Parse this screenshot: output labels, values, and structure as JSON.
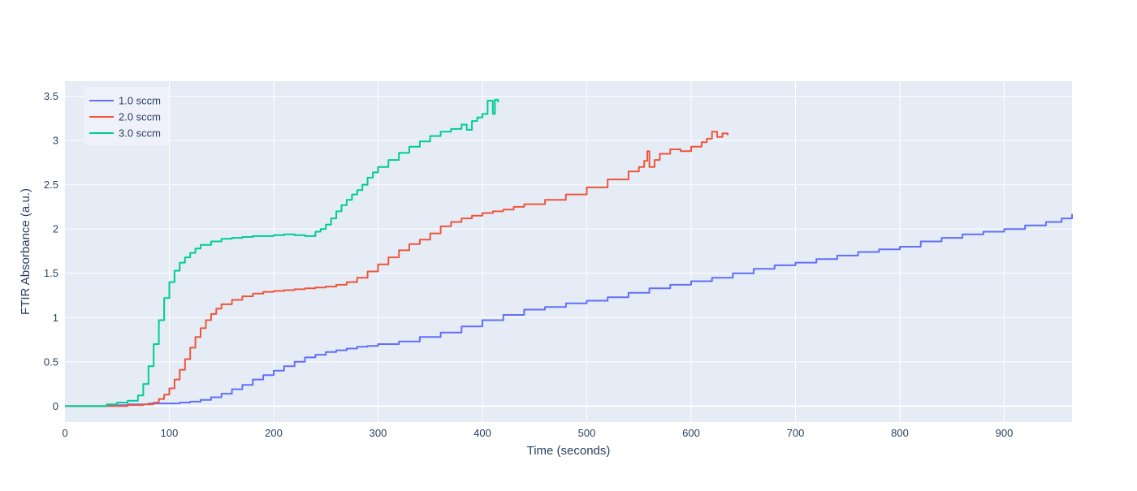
{
  "chart_data": {
    "type": "line",
    "title": "",
    "xlabel": "Time (seconds)",
    "ylabel": "FTIR Absorbance (a.u.)",
    "xlim": [
      0,
      965
    ],
    "ylim": [
      -0.18,
      3.67
    ],
    "x_ticks": [
      0,
      100,
      200,
      300,
      400,
      500,
      600,
      700,
      800,
      900
    ],
    "y_ticks": [
      0,
      0.5,
      1,
      1.5,
      2,
      2.5,
      3,
      3.5
    ],
    "x_tick_labels": [
      "0",
      "100",
      "200",
      "300",
      "400",
      "500",
      "600",
      "700",
      "800",
      "900"
    ],
    "y_tick_labels": [
      "0",
      "0.5",
      "1",
      "1.5",
      "2",
      "2.5",
      "3",
      "3.5"
    ],
    "grid": true,
    "legend_position": "top-left",
    "plot_background": "#e5ecf6",
    "series": [
      {
        "name": "1.0 sccm",
        "color": "#636efa",
        "x": [
          0,
          20,
          40,
          60,
          80,
          100,
          110,
          120,
          130,
          140,
          150,
          160,
          170,
          180,
          190,
          200,
          210,
          220,
          230,
          240,
          250,
          260,
          270,
          280,
          290,
          300,
          320,
          340,
          360,
          380,
          400,
          420,
          440,
          460,
          480,
          500,
          520,
          540,
          560,
          580,
          600,
          620,
          640,
          660,
          680,
          700,
          720,
          740,
          760,
          780,
          800,
          820,
          840,
          860,
          880,
          900,
          920,
          940,
          955,
          965
        ],
        "y": [
          0.0,
          0.0,
          0.01,
          0.02,
          0.03,
          0.03,
          0.04,
          0.05,
          0.07,
          0.1,
          0.14,
          0.19,
          0.24,
          0.3,
          0.35,
          0.4,
          0.45,
          0.5,
          0.55,
          0.58,
          0.61,
          0.63,
          0.65,
          0.67,
          0.68,
          0.7,
          0.73,
          0.78,
          0.83,
          0.9,
          0.97,
          1.03,
          1.09,
          1.12,
          1.16,
          1.19,
          1.23,
          1.28,
          1.33,
          1.37,
          1.41,
          1.45,
          1.5,
          1.55,
          1.59,
          1.62,
          1.66,
          1.7,
          1.74,
          1.77,
          1.8,
          1.86,
          1.9,
          1.94,
          1.97,
          2.0,
          2.04,
          2.08,
          2.12,
          2.17
        ]
      },
      {
        "name": "2.0 sccm",
        "color": "#ef553b",
        "x": [
          0,
          20,
          40,
          60,
          75,
          85,
          90,
          95,
          100,
          105,
          110,
          115,
          120,
          125,
          130,
          135,
          140,
          145,
          150,
          160,
          170,
          180,
          190,
          200,
          210,
          220,
          230,
          240,
          250,
          260,
          270,
          280,
          290,
          300,
          310,
          320,
          330,
          340,
          350,
          360,
          370,
          380,
          390,
          400,
          410,
          420,
          430,
          440,
          460,
          480,
          500,
          520,
          540,
          550,
          555,
          558,
          560,
          565,
          570,
          580,
          590,
          600,
          610,
          615,
          620,
          625,
          630,
          635
        ],
        "y": [
          0.0,
          0.0,
          0.0,
          0.01,
          0.02,
          0.04,
          0.08,
          0.13,
          0.2,
          0.3,
          0.41,
          0.53,
          0.66,
          0.78,
          0.88,
          0.97,
          1.04,
          1.1,
          1.15,
          1.2,
          1.24,
          1.27,
          1.29,
          1.3,
          1.31,
          1.32,
          1.33,
          1.34,
          1.35,
          1.37,
          1.4,
          1.45,
          1.52,
          1.6,
          1.68,
          1.76,
          1.83,
          1.88,
          1.95,
          2.03,
          2.08,
          2.12,
          2.15,
          2.18,
          2.2,
          2.22,
          2.25,
          2.28,
          2.33,
          2.39,
          2.47,
          2.56,
          2.65,
          2.7,
          2.77,
          2.88,
          2.7,
          2.78,
          2.85,
          2.9,
          2.88,
          2.93,
          2.98,
          3.02,
          3.1,
          3.04,
          3.08,
          3.06
        ]
      },
      {
        "name": "3.0 sccm",
        "color": "#00cc96",
        "x": [
          0,
          20,
          40,
          50,
          60,
          70,
          75,
          80,
          85,
          90,
          95,
          100,
          105,
          110,
          115,
          120,
          125,
          130,
          140,
          150,
          160,
          170,
          180,
          190,
          200,
          210,
          220,
          230,
          240,
          245,
          250,
          255,
          260,
          265,
          270,
          275,
          280,
          285,
          290,
          295,
          300,
          310,
          320,
          330,
          340,
          350,
          360,
          370,
          380,
          385,
          390,
          395,
          400,
          405,
          410,
          412,
          415
        ],
        "y": [
          0.0,
          0.0,
          0.02,
          0.04,
          0.06,
          0.12,
          0.25,
          0.45,
          0.7,
          0.97,
          1.22,
          1.4,
          1.53,
          1.62,
          1.68,
          1.73,
          1.78,
          1.82,
          1.86,
          1.89,
          1.9,
          1.91,
          1.92,
          1.92,
          1.93,
          1.94,
          1.93,
          1.92,
          1.97,
          2.0,
          2.05,
          2.12,
          2.2,
          2.27,
          2.33,
          2.39,
          2.44,
          2.5,
          2.58,
          2.64,
          2.7,
          2.78,
          2.86,
          2.93,
          2.99,
          3.05,
          3.1,
          3.13,
          3.18,
          3.12,
          3.22,
          3.26,
          3.3,
          3.45,
          3.3,
          3.46,
          3.43
        ]
      }
    ]
  }
}
